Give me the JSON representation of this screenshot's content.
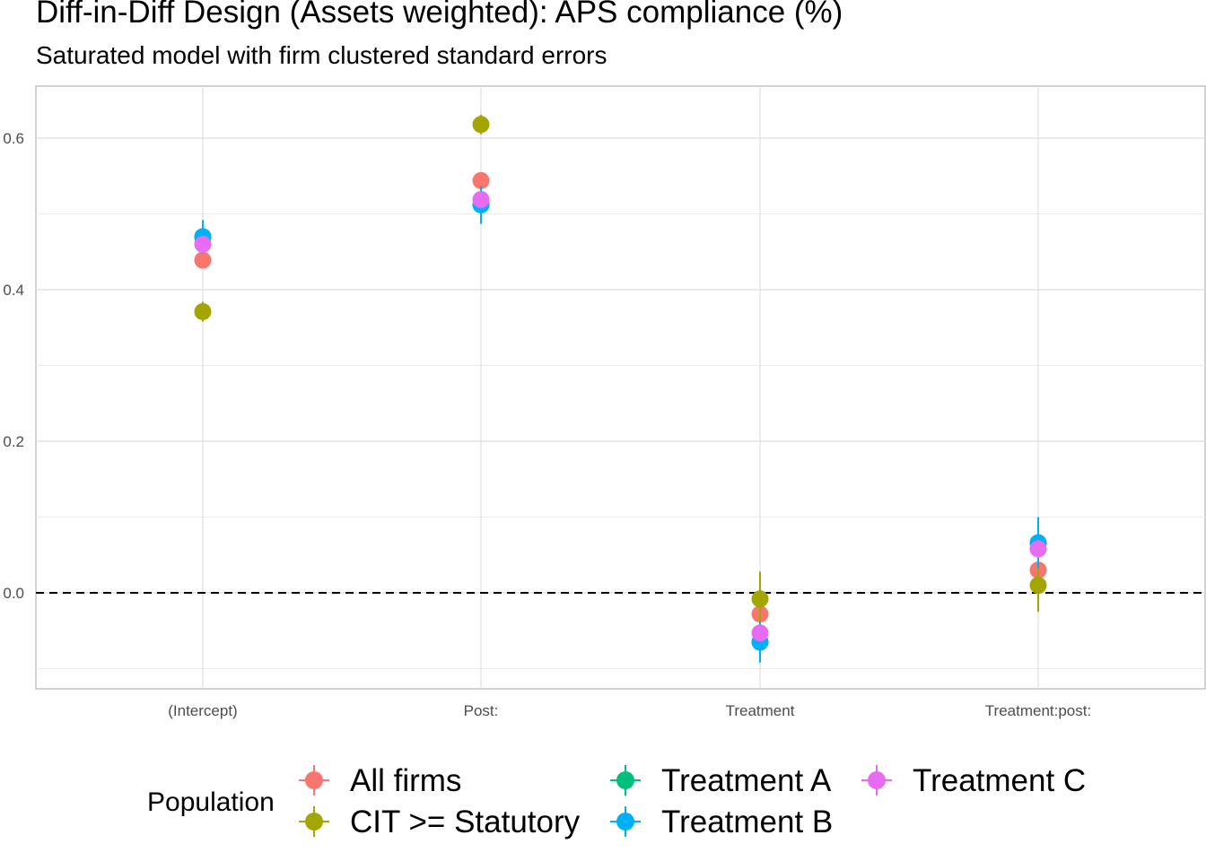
{
  "chart_data": {
    "type": "scatter",
    "title": "Diff-in-Diff Design (Assets weighted): APS compliance (%)",
    "subtitle": "Saturated model with firm clustered standard errors",
    "xlabel": "",
    "ylabel": "",
    "categories": [
      "(Intercept)",
      "Post:",
      "Treatment",
      "Treatment:post:"
    ],
    "ylim": [
      -0.1,
      0.66
    ],
    "yticks": [
      0.0,
      0.2,
      0.4,
      0.6
    ],
    "ytick_labels": [
      "0.0",
      "0.2",
      "0.4",
      "0.6"
    ],
    "grid": true,
    "reference_line": {
      "y": 0,
      "style": "dashed"
    },
    "legend": {
      "title": "Population",
      "position": "bottom"
    },
    "series": [
      {
        "name": "All firms",
        "color": "#F8766D",
        "values": [
          0.439,
          0.544,
          -0.028,
          0.03
        ],
        "lower": [
          0.432,
          0.537,
          -0.038,
          0.02
        ],
        "upper": [
          0.446,
          0.551,
          -0.018,
          0.04
        ]
      },
      {
        "name": "CIT >= Statutory",
        "color": "#A3A500",
        "values": [
          0.371,
          0.618,
          -0.008,
          0.01
        ],
        "lower": [
          0.358,
          0.605,
          -0.045,
          -0.025
        ],
        "upper": [
          0.384,
          0.631,
          0.028,
          0.045
        ]
      },
      {
        "name": "Treatment A",
        "color": "#00BF7D",
        "values": [
          0.469,
          0.512,
          -0.065,
          0.066
        ],
        "lower": [
          0.455,
          0.498,
          -0.078,
          0.05
        ],
        "upper": [
          0.483,
          0.526,
          -0.052,
          0.082
        ]
      },
      {
        "name": "Treatment B",
        "color": "#00B0F6",
        "values": [
          0.47,
          0.512,
          -0.065,
          0.066
        ],
        "lower": [
          0.448,
          0.487,
          -0.092,
          0.032
        ],
        "upper": [
          0.492,
          0.537,
          -0.038,
          0.1
        ]
      },
      {
        "name": "Treatment C",
        "color": "#E76BF3",
        "values": [
          0.46,
          0.519,
          -0.053,
          0.058
        ],
        "lower": [
          0.451,
          0.51,
          -0.063,
          0.046
        ],
        "upper": [
          0.469,
          0.528,
          -0.043,
          0.07
        ]
      }
    ]
  }
}
